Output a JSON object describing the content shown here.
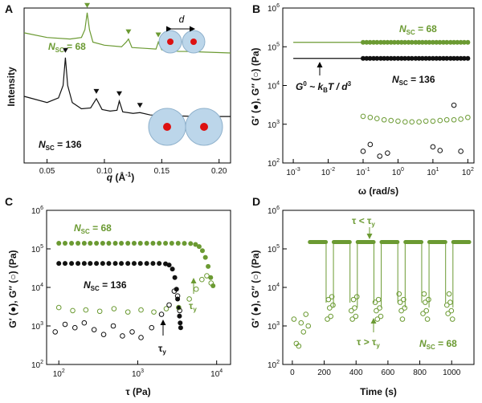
{
  "colors": {
    "green": "#6b9a32",
    "black": "#111111"
  },
  "panels": {
    "A": {
      "letter": "A",
      "ylabel": "Intensity",
      "xlabel_main": "q",
      "xlabel_unit": " (Å",
      "xlabel_sup": "-1",
      "xlabel_close": ")",
      "ticks_x": [
        "0.05",
        "0.10",
        "0.15",
        "0.20"
      ],
      "label_68_main": "N",
      "label_68_sub": "SC",
      "label_68_val": " = 68",
      "label_136_main": "N",
      "label_136_sub": "SC",
      "label_136_val": " = 136",
      "d_label": "d"
    },
    "B": {
      "letter": "B",
      "ylabel": "G′ (●), G″ (○) (Pa)",
      "xlabel": "ω (rad/s)",
      "ticks_y": [
        "10",
        "10",
        "10",
        "10",
        "10"
      ],
      "ticks_y_exp": [
        "2",
        "3",
        "4",
        "5",
        "6"
      ],
      "ticks_x": [
        "10",
        "10",
        "10",
        "10",
        "10",
        "10"
      ],
      "ticks_x_exp": [
        "-3",
        "-2",
        "-1",
        "0",
        "1",
        "2"
      ],
      "label_68_main": "N",
      "label_68_sub": "SC",
      "label_68_val": " = 68",
      "label_136_main": "N",
      "label_136_sub": "SC",
      "label_136_val": " = 136",
      "g0_label": "G",
      "g0_sup": "0",
      "g0_rest": " ~ k",
      "g0_sub": "B",
      "g0_end": "T / d",
      "g0_cube": "3"
    },
    "C": {
      "letter": "C",
      "ylabel": "G′ (●), G″ (○) (Pa)",
      "xlabel": "τ (Pa)",
      "ticks_y": [
        "10",
        "10",
        "10",
        "10",
        "10"
      ],
      "ticks_y_exp": [
        "2",
        "3",
        "4",
        "5",
        "6"
      ],
      "ticks_x": [
        "10",
        "10",
        "10"
      ],
      "ticks_x_exp": [
        "2",
        "3",
        "4"
      ],
      "label_68_main": "N",
      "label_68_sub": "SC",
      "label_68_val": " = 68",
      "label_136_main": "N",
      "label_136_sub": "SC",
      "label_136_val": " = 136",
      "tau_y": "τ",
      "tau_y_sub": "y"
    },
    "D": {
      "letter": "D",
      "ylabel": "G′ (●), G″ (○) (Pa)",
      "xlabel": "Time (s)",
      "ticks_y": [
        "10",
        "10",
        "10",
        "10",
        "10"
      ],
      "ticks_y_exp": [
        "2",
        "3",
        "4",
        "5",
        "6"
      ],
      "ticks_x": [
        "0",
        "200",
        "400",
        "600",
        "800",
        "1000"
      ],
      "ann_top": "τ < τ",
      "ann_top_sub": "y",
      "ann_bot": "τ > τ",
      "ann_bot_sub": "y",
      "label_68_main": "N",
      "label_68_sub": "SC",
      "label_68_val": " = 68"
    }
  },
  "chart_data": [
    {
      "panel": "A",
      "type": "line",
      "xlabel": "q (Å-1)",
      "ylabel": "Intensity",
      "xlim": [
        0.03,
        0.21
      ],
      "series": [
        {
          "name": "NSC = 68",
          "color": "#6b9a32",
          "peaks_q": [
            0.085,
            0.121,
            0.147,
            0.17
          ],
          "x": [
            0.03,
            0.05,
            0.07,
            0.08,
            0.083,
            0.085,
            0.087,
            0.09,
            0.1,
            0.115,
            0.119,
            0.121,
            0.124,
            0.135,
            0.145,
            0.147,
            0.15,
            0.165,
            0.17,
            0.19,
            0.21
          ],
          "y": [
            8.4,
            8.1,
            8.0,
            8.1,
            8.6,
            9.7,
            8.6,
            7.8,
            7.6,
            7.5,
            7.8,
            8.0,
            7.45,
            7.4,
            7.35,
            7.8,
            7.3,
            7.2,
            7.2,
            7.15,
            7.1
          ]
        },
        {
          "name": "NSC = 136",
          "color": "#111111",
          "peaks_q": [
            0.066,
            0.093,
            0.113,
            0.131
          ],
          "x": [
            0.03,
            0.05,
            0.06,
            0.064,
            0.066,
            0.068,
            0.072,
            0.08,
            0.088,
            0.093,
            0.098,
            0.105,
            0.111,
            0.113,
            0.116,
            0.125,
            0.131,
            0.14,
            0.16,
            0.18,
            0.21
          ],
          "y": [
            4.3,
            3.9,
            4.2,
            5.0,
            6.8,
            5.0,
            3.9,
            3.5,
            3.55,
            4.15,
            3.45,
            3.35,
            3.4,
            4.0,
            3.3,
            3.2,
            3.25,
            3.1,
            3.05,
            3.0,
            3.0
          ]
        }
      ]
    },
    {
      "panel": "B",
      "type": "scatter",
      "xlabel": "ω (rad/s)",
      "ylabel": "G′ (●), G″ (○) (Pa)",
      "xscale": "log",
      "yscale": "log",
      "xlim": [
        0.0005,
        150
      ],
      "ylim": [
        100,
        1000000
      ],
      "series": [
        {
          "name": "G′ NSC = 68",
          "color": "#6b9a32",
          "marker": "filled",
          "line_from": 0.001,
          "y_const": 130000,
          "x": [
            0.1,
            0.126,
            0.158,
            0.2,
            0.25,
            0.32,
            0.4,
            0.5,
            0.63,
            0.79,
            1,
            1.26,
            1.58,
            2,
            2.5,
            3.2,
            4,
            5,
            6.3,
            7.9,
            10,
            12.6,
            15.8,
            20,
            25,
            32,
            40,
            50,
            63,
            79,
            100
          ]
        },
        {
          "name": "G′ NSC = 136",
          "color": "#111111",
          "marker": "filled",
          "line_from": 0.001,
          "y_const": 50000,
          "x": [
            0.1,
            0.126,
            0.158,
            0.2,
            0.25,
            0.32,
            0.4,
            0.5,
            0.63,
            0.79,
            1,
            1.26,
            1.58,
            2,
            2.5,
            3.2,
            4,
            5,
            6.3,
            7.9,
            10,
            12.6,
            15.8,
            20,
            25,
            32,
            40,
            50,
            63,
            79,
            100
          ]
        },
        {
          "name": "G″ NSC = 68",
          "color": "#6b9a32",
          "marker": "open",
          "x": [
            0.1,
            0.16,
            0.25,
            0.4,
            0.63,
            1,
            1.6,
            2.5,
            4,
            6.3,
            10,
            16,
            25,
            40,
            63,
            100
          ],
          "y": [
            1600,
            1500,
            1400,
            1300,
            1250,
            1200,
            1150,
            1150,
            1150,
            1200,
            1200,
            1250,
            1300,
            1300,
            1350,
            1500
          ]
        },
        {
          "name": "G″ NSC = 136",
          "color": "#111111",
          "marker": "open",
          "x": [
            0.1,
            0.16,
            0.3,
            0.5,
            10,
            16,
            40,
            63
          ],
          "y": [
            200,
            300,
            150,
            180,
            260,
            210,
            3100,
            200
          ]
        }
      ]
    },
    {
      "panel": "C",
      "type": "scatter",
      "xlabel": "τ (Pa)",
      "ylabel": "G′ (●), G″ (○) (Pa)",
      "xscale": "log",
      "yscale": "log",
      "xlim": [
        70,
        15000
      ],
      "ylim": [
        100,
        1000000
      ],
      "series": [
        {
          "name": "G′ NSC = 68",
          "color": "#6b9a32",
          "marker": "filled",
          "x": [
            100,
            120,
            145,
            175,
            210,
            250,
            300,
            360,
            430,
            520,
            620,
            750,
            900,
            1080,
            1300,
            1560,
            1870,
            2250,
            2700,
            3250,
            3900,
            4680,
            5400,
            6000,
            6600,
            7200,
            7800,
            8400,
            9000
          ],
          "y": [
            140000,
            140000,
            140000,
            140000,
            140000,
            140000,
            140000,
            140000,
            140000,
            140000,
            140000,
            140000,
            140000,
            140000,
            140000,
            140000,
            140000,
            140000,
            140000,
            140000,
            139000,
            137000,
            130000,
            115000,
            90000,
            60000,
            35000,
            18000,
            11000
          ]
        },
        {
          "name": "G′ NSC = 136",
          "color": "#111111",
          "marker": "filled",
          "x": [
            100,
            120,
            145,
            175,
            210,
            250,
            300,
            360,
            430,
            520,
            620,
            750,
            900,
            1080,
            1300,
            1560,
            1870,
            2250,
            2500,
            2750,
            2950,
            3100,
            3200,
            3300,
            3380,
            3450,
            3500
          ],
          "y": [
            42000,
            42000,
            42000,
            42000,
            42000,
            42000,
            42000,
            42000,
            42000,
            42000,
            42000,
            42000,
            42000,
            42000,
            42000,
            42000,
            42000,
            41000,
            38000,
            30000,
            18000,
            9000,
            5000,
            3000,
            1800,
            1200,
            900
          ]
        },
        {
          "name": "G″ NSC = 68",
          "color": "#6b9a32",
          "marker": "open",
          "x": [
            100,
            150,
            220,
            330,
            500,
            750,
            1100,
            1600,
            2300,
            3300,
            4500,
            5500,
            6500,
            7500,
            8500
          ],
          "y": [
            3000,
            2500,
            2600,
            2400,
            2800,
            2300,
            2600,
            2300,
            2800,
            3000,
            5000,
            9000,
            16000,
            20000,
            13000
          ]
        },
        {
          "name": "G″ NSC = 136",
          "color": "#111111",
          "marker": "open",
          "x": [
            90,
            120,
            160,
            210,
            280,
            370,
            490,
            640,
            850,
            1100,
            1500,
            2000,
            2500,
            2900,
            3200,
            3400
          ],
          "y": [
            700,
            1100,
            900,
            1200,
            800,
            600,
            1000,
            550,
            700,
            500,
            900,
            2000,
            3500,
            8000,
            6000,
            2500
          ]
        }
      ]
    },
    {
      "panel": "D",
      "type": "scatter",
      "xlabel": "Time (s)",
      "ylabel": "G′ (●), G″ (○) (Pa)",
      "xlim": [
        -60,
        1140
      ],
      "yscale": "log",
      "ylim": [
        100,
        1000000
      ],
      "series": [
        {
          "name": "G′ NSC = 68",
          "color": "#6b9a32",
          "marker": "filled",
          "level": 150000,
          "segments": [
            [
              110,
              210
            ],
            [
              260,
              360
            ],
            [
              410,
              510
            ],
            [
              560,
              660
            ],
            [
              710,
              810
            ],
            [
              860,
              960
            ],
            [
              1010,
              1110
            ]
          ]
        },
        {
          "name": "G″ NSC = 68",
          "color": "#6b9a32",
          "marker": "open",
          "level_low": [
            1500,
            8000
          ],
          "segments": [
            [
              220,
              255
            ],
            [
              370,
              405
            ],
            [
              520,
              555
            ],
            [
              670,
              705
            ],
            [
              820,
              855
            ],
            [
              970,
              1005
            ]
          ],
          "initial_x": [
            10,
            25,
            40,
            55,
            70,
            85,
            100
          ],
          "initial_y": [
            1500,
            350,
            300,
            1200,
            700,
            2000,
            1000
          ]
        }
      ]
    }
  ]
}
